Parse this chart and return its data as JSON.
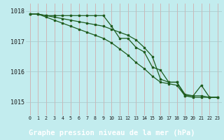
{
  "xlabel": "Graphe pression niveau de la mer (hPa)",
  "background_color": "#c2ecee",
  "plot_bg_color": "#c2ecee",
  "xlabel_bg": "#2d5a27",
  "xlabel_fg": "#ffffff",
  "grid_color_v": "#d4a0a0",
  "grid_color_h": "#a8c8ca",
  "line_color": "#1e5c1e",
  "x_ticks": [
    0,
    1,
    2,
    3,
    4,
    5,
    6,
    7,
    8,
    9,
    10,
    11,
    12,
    13,
    14,
    15,
    16,
    17,
    18,
    19,
    20,
    21,
    22,
    23
  ],
  "y_ticks": [
    1015,
    1016,
    1017,
    1018
  ],
  "ylim": [
    1014.55,
    1018.25
  ],
  "xlim": [
    -0.5,
    23.5
  ],
  "series": [
    [
      1017.9,
      1017.9,
      1017.85,
      1017.85,
      1017.85,
      1017.85,
      1017.85,
      1017.85,
      1017.85,
      1017.85,
      1017.5,
      1017.1,
      1017.1,
      1016.8,
      1016.65,
      1016.15,
      1016.05,
      1015.65,
      1015.65,
      1015.2,
      1015.2,
      1015.55,
      1015.15,
      1015.15
    ],
    [
      1017.9,
      1017.9,
      1017.85,
      1017.8,
      1017.75,
      1017.7,
      1017.65,
      1017.6,
      1017.55,
      1017.5,
      1017.4,
      1017.3,
      1017.2,
      1017.05,
      1016.8,
      1016.5,
      1015.75,
      1015.65,
      1015.65,
      1015.25,
      1015.2,
      1015.2,
      1015.15,
      1015.15
    ],
    [
      1017.9,
      1017.9,
      1017.8,
      1017.7,
      1017.6,
      1017.5,
      1017.4,
      1017.3,
      1017.2,
      1017.1,
      1016.95,
      1016.75,
      1016.55,
      1016.3,
      1016.1,
      1015.85,
      1015.65,
      1015.6,
      1015.55,
      1015.2,
      1015.15,
      1015.15,
      1015.15,
      1015.15
    ]
  ]
}
